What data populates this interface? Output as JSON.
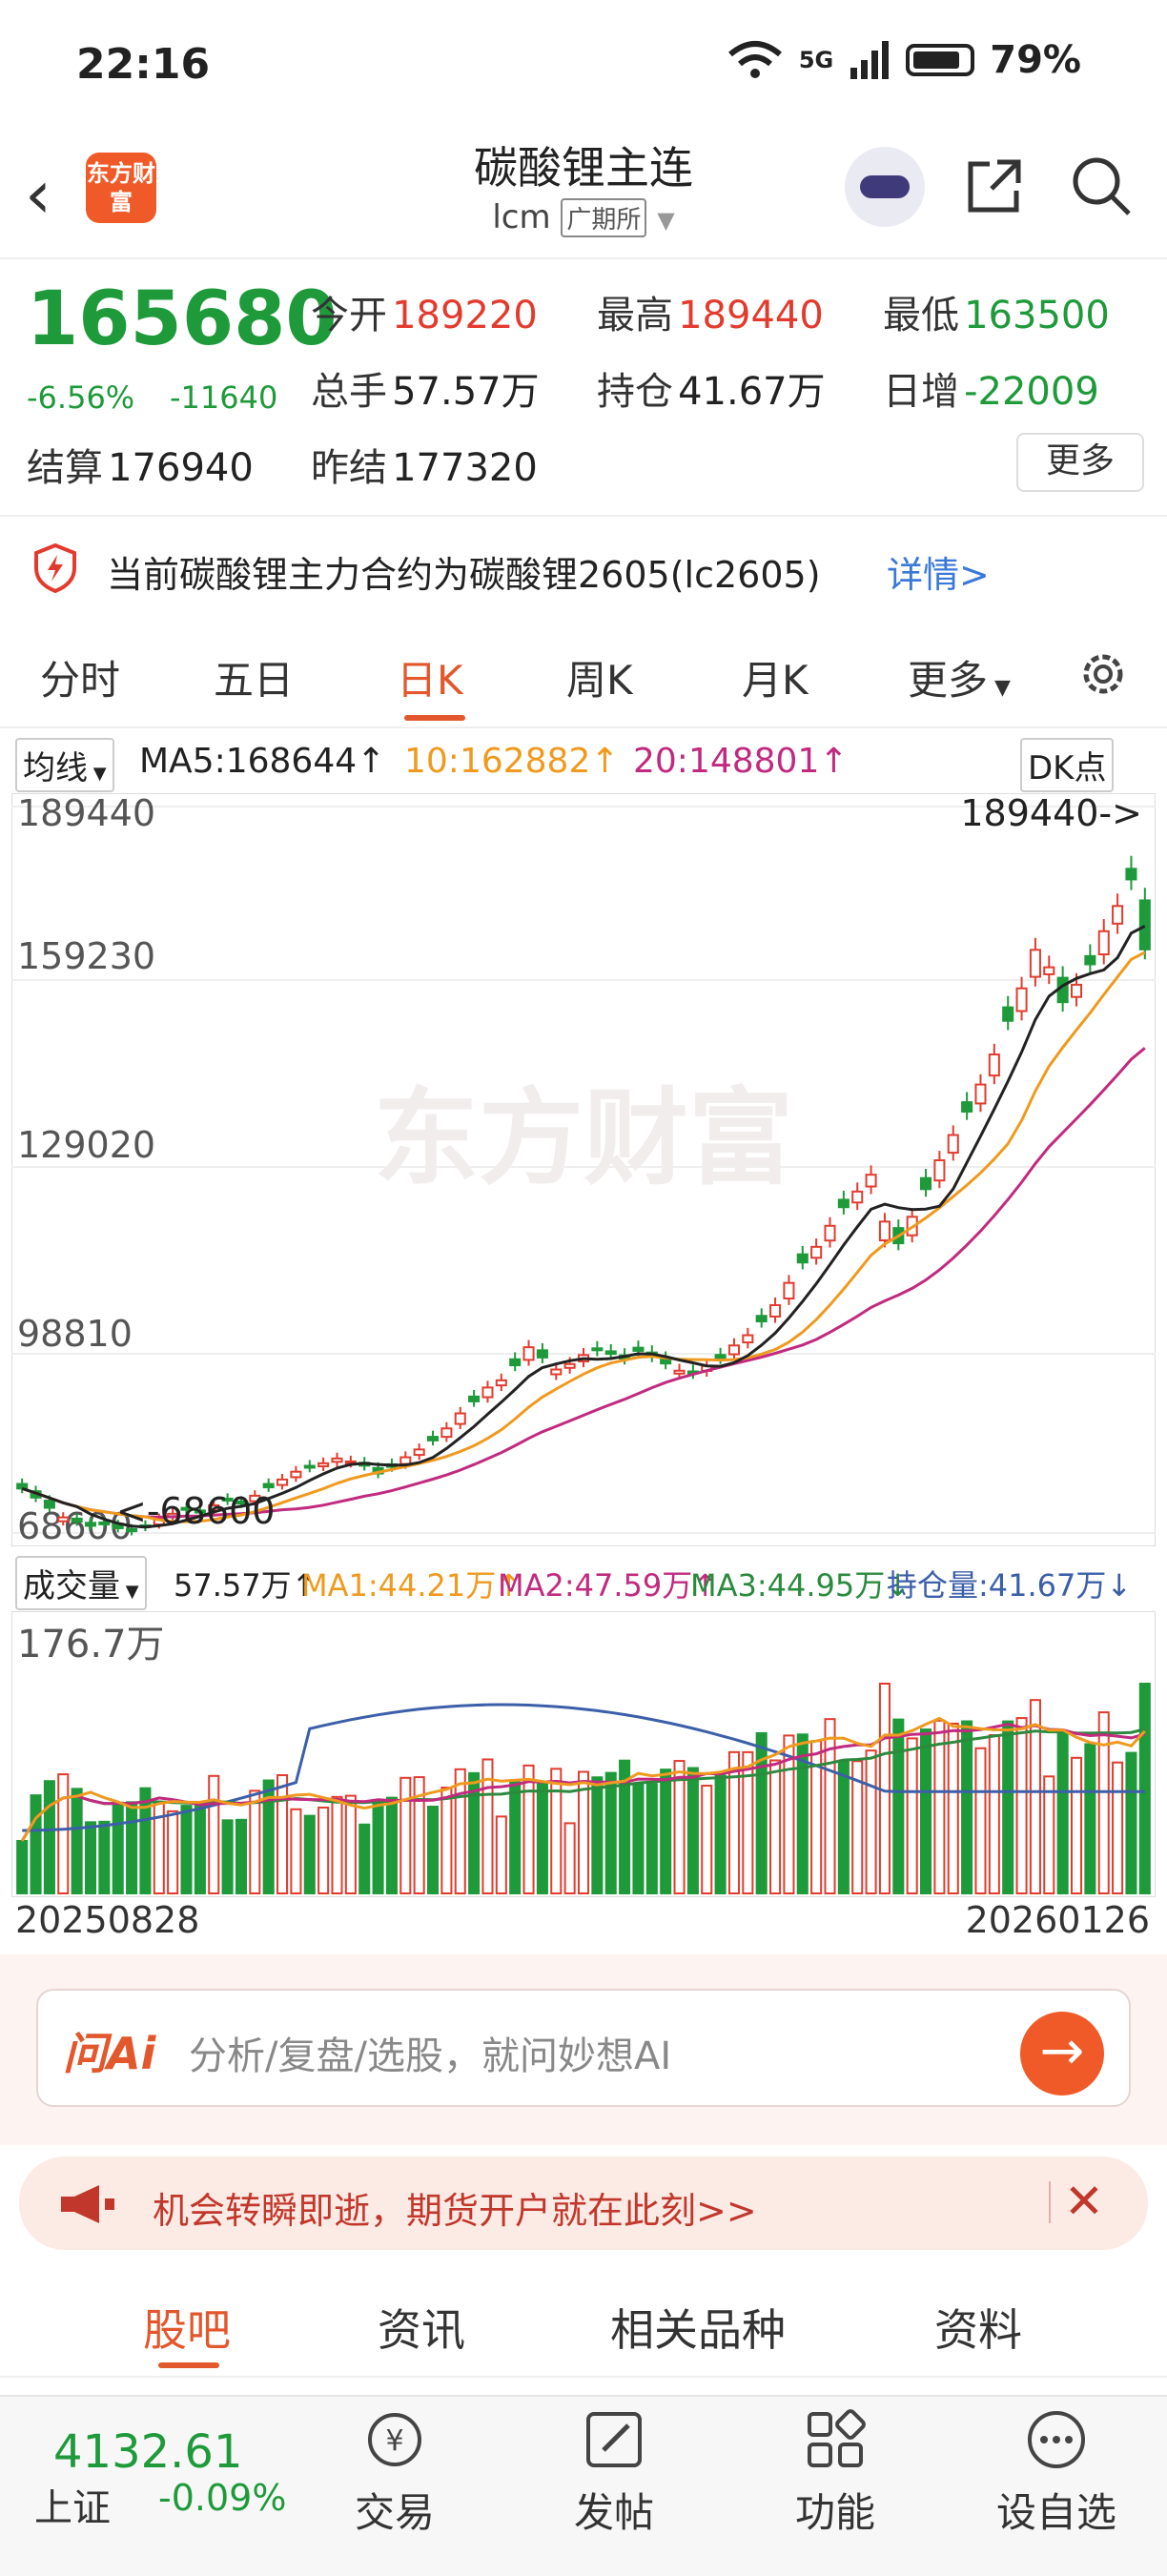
{
  "status_bar": {
    "time": "22:16",
    "battery": "79%",
    "network": "5G"
  },
  "header": {
    "title": "碳酸锂主连",
    "code": "lcm",
    "exchange": "广期所",
    "logo_text": "东方财富"
  },
  "quote": {
    "price": "165680",
    "change_pct": "-6.56%",
    "change": "-11640",
    "fields": [
      {
        "label": "今开",
        "value": "189220",
        "color": "red"
      },
      {
        "label": "最高",
        "value": "189440",
        "color": "red"
      },
      {
        "label": "最低",
        "value": "163500",
        "color": "green"
      },
      {
        "label": "总手",
        "value": "57.57万",
        "color": "black"
      },
      {
        "label": "持仓",
        "value": "41.67万",
        "color": "black"
      },
      {
        "label": "日增",
        "value": "-22009",
        "color": "green"
      },
      {
        "label": "结算",
        "value": "176940",
        "color": "black"
      },
      {
        "label": "昨结",
        "value": "177320",
        "color": "black"
      }
    ],
    "more_label": "更多"
  },
  "notice": {
    "text": "当前碳酸锂主力合约为碳酸锂2605(lc2605)",
    "link": "详情>"
  },
  "tabs": [
    "分时",
    "五日",
    "日K",
    "周K",
    "月K",
    "更多"
  ],
  "active_tab": "日K",
  "ma_bar": {
    "selector": "均线",
    "ma5": "MA5:168644↑",
    "ma10": "10:162882↑",
    "ma20": "20:148801↑",
    "dk_label": "DK点"
  },
  "chart_data": {
    "type": "candlestick",
    "y_ticks": [
      "189440",
      "159230",
      "129020",
      "98810",
      "68600"
    ],
    "ylim": [
      68600,
      189440
    ],
    "max_label": "189440->",
    "min_label": "<-68600",
    "watermark": "东方财富",
    "x_start": "20250828",
    "x_end": "20260126",
    "closes": [
      76000,
      74500,
      72800,
      71200,
      70500,
      69800,
      70200,
      69400,
      68900,
      69600,
      71000,
      71800,
      72500,
      72000,
      73200,
      74000,
      73500,
      74800,
      76200,
      77500,
      78800,
      79500,
      80200,
      81000,
      80500,
      79800,
      78500,
      79600,
      81200,
      82500,
      84000,
      86000,
      88500,
      90500,
      92800,
      94000,
      96500,
      99500,
      97800,
      95800,
      96700,
      98200,
      99000,
      98400,
      97600,
      98900,
      98000,
      96800,
      95600,
      95200,
      96400,
      97700,
      99800,
      101500,
      103800,
      106500,
      110200,
      113600,
      116200,
      119700,
      122800,
      125400,
      128200,
      120400,
      116800,
      121200,
      125800,
      130600,
      134800,
      138700,
      143200,
      148200,
      153800,
      159200,
      165600,
      162700,
      156900,
      159800,
      163200,
      168700,
      172900,
      177320,
      165680
    ],
    "volume": {
      "label": "成交量",
      "value": "57.57万↑",
      "ma1": "MA1:44.21万↑",
      "ma2": "MA2:47.59万↑",
      "ma3": "MA3:44.95万↓",
      "oi": "持仓量:41.67万↓",
      "top_tick": "176.7万"
    }
  },
  "ask_ai": {
    "logo": "问Ai",
    "placeholder": "分析/复盘/选股，就问妙想AI"
  },
  "promo": {
    "text": "机会转瞬即逝，期货开户就在此刻>>"
  },
  "subtabs": [
    "股吧",
    "资讯",
    "相关品种",
    "资料"
  ],
  "bottom": {
    "index_value": "4132.61",
    "index_name": "上证",
    "index_change": "-0.09%",
    "items": [
      {
        "label": "交易"
      },
      {
        "label": "发帖"
      },
      {
        "label": "功能"
      },
      {
        "label": "设自选"
      }
    ]
  },
  "colors": {
    "accent": "#e2572b",
    "up": "#e23b2e",
    "down": "#1e9a3a"
  }
}
